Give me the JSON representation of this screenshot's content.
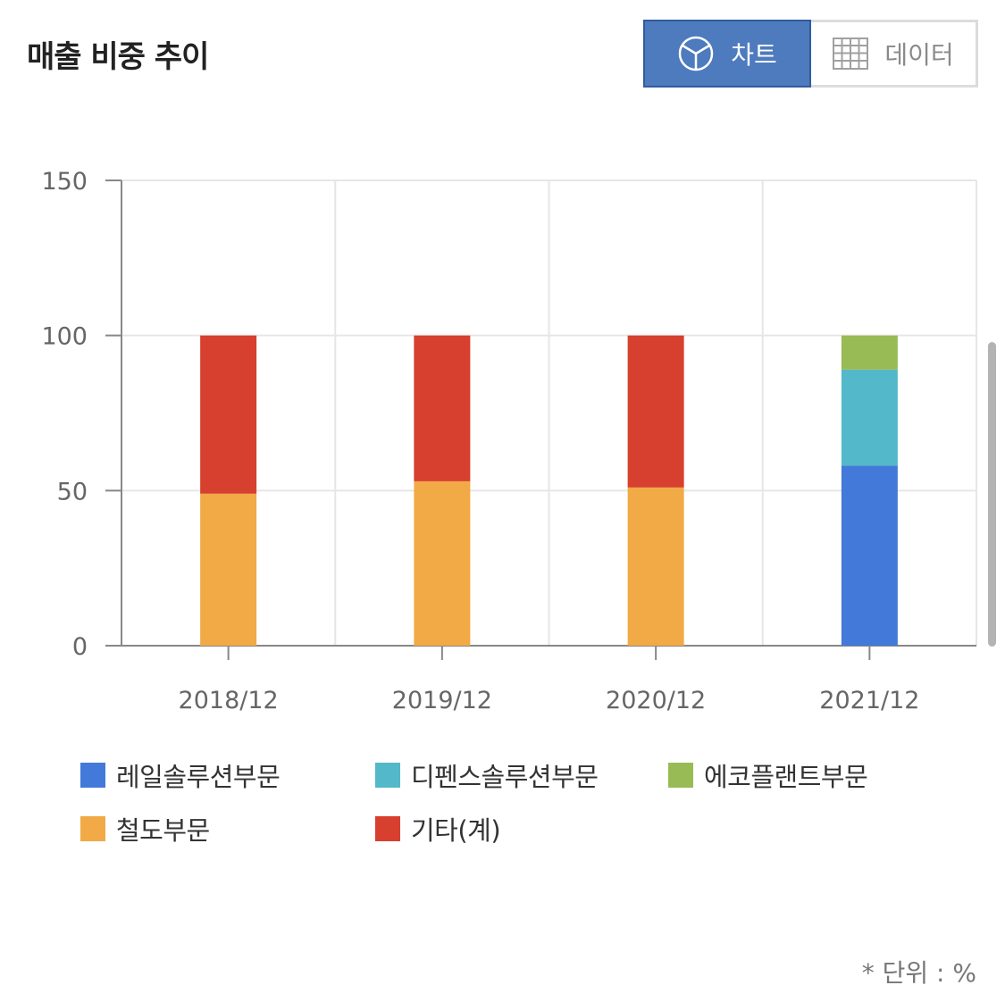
{
  "header": {
    "title": "매출 비중 추이",
    "toggle": {
      "chart_label": "차트",
      "data_label": "데이터",
      "active": "chart"
    }
  },
  "chart_data": {
    "type": "bar",
    "stacked": true,
    "categories": [
      "2018/12",
      "2019/12",
      "2020/12",
      "2021/12"
    ],
    "series": [
      {
        "name": "레일솔루션부문",
        "color": "#4379d9",
        "values": [
          0,
          0,
          0,
          58
        ]
      },
      {
        "name": "디펜스솔루션부문",
        "color": "#53b8c9",
        "values": [
          0,
          0,
          0,
          31
        ]
      },
      {
        "name": "에코플랜트부문",
        "color": "#98bb56",
        "values": [
          0,
          0,
          0,
          11
        ]
      },
      {
        "name": "철도부문",
        "color": "#f1aa45",
        "values": [
          49,
          53,
          51,
          0
        ]
      },
      {
        "name": "기타(계)",
        "color": "#d73f2e",
        "values": [
          51,
          47,
          49,
          0
        ]
      }
    ],
    "stack_order": [
      "철도부문",
      "레일솔루션부문",
      "디펜스솔루션부문",
      "에코플랜트부문",
      "기타(계)"
    ],
    "y_ticks": [
      0,
      50,
      100,
      150
    ],
    "ylim": [
      0,
      150
    ],
    "grid": true,
    "legend_position": "bottom"
  },
  "unit_note": "* 단위 : %"
}
